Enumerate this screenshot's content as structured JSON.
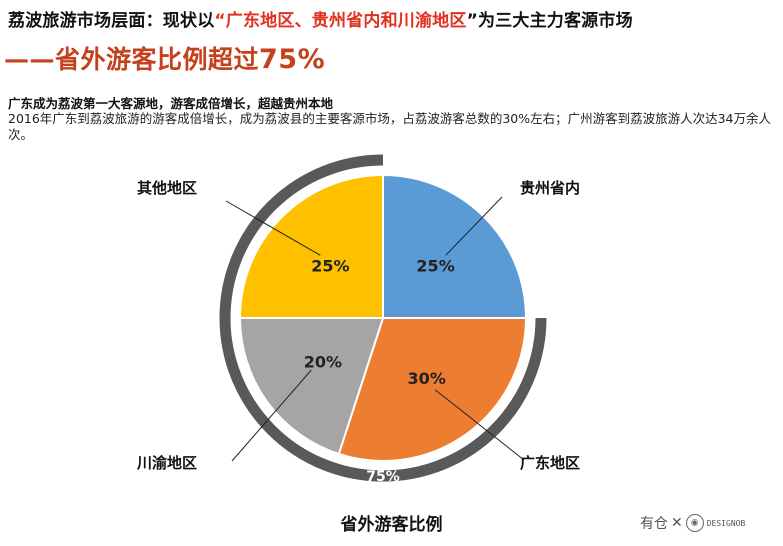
{
  "header": {
    "title_prefix": "荔波旅游市场层面：现状以",
    "title_highlight": "“广东地区、贵州省内和川渝地区",
    "title_suffix": "”为三大主力客源市场",
    "subtitle_main": "——省外游客比例超过",
    "subtitle_value": "75%"
  },
  "text": {
    "lead": "广东成为荔波第一大客源地，游客成倍增长，超越贵州本地",
    "body": "2016年广东到荔波旅游的游客成倍增长，成为荔波县的主要客源市场，占荔波游客总数的30%左右；广州游客到荔波旅游人次达34万余人次。"
  },
  "chart_data": {
    "type": "pie",
    "title": "省外游客比例",
    "slices": [
      {
        "label": "贵州省内",
        "value": 25,
        "value_label": "25%",
        "color": "#5b9bd5"
      },
      {
        "label": "广东地区",
        "value": 30,
        "value_label": "30%",
        "color": "#ed7d31"
      },
      {
        "label": "川渝地区",
        "value": 20,
        "value_label": "20%",
        "color": "#a5a5a5"
      },
      {
        "label": "其他地区",
        "value": 25,
        "value_label": "25%",
        "color": "#ffc000"
      }
    ],
    "outer_arc": {
      "label": "75%",
      "value": 75,
      "color": "#595959"
    }
  },
  "watermark": {
    "text": "有仓",
    "separator": "✕",
    "brand": "DESIGNOB"
  }
}
